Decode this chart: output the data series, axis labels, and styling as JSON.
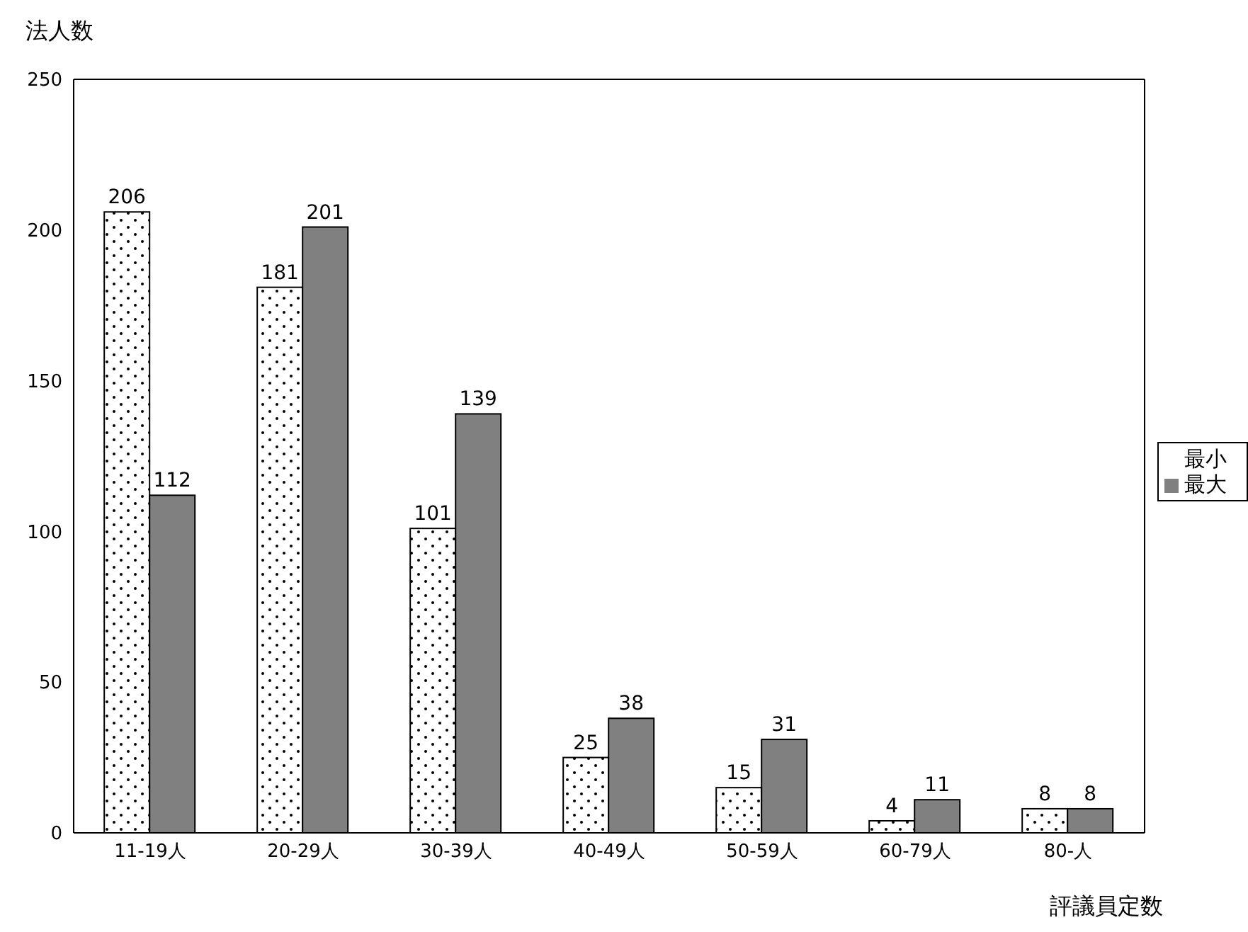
{
  "chart_data": {
    "type": "bar",
    "ylabel": "法人数",
    "xlabel": "評議員定数",
    "categories": [
      "11-19人",
      "20-29人",
      "30-39人",
      "40-49人",
      "50-59人",
      "60-79人",
      "80-人"
    ],
    "series": [
      {
        "name": "最小",
        "color": "#ffffff",
        "values": [
          206,
          181,
          101,
          25,
          15,
          4,
          8
        ]
      },
      {
        "name": "最大",
        "color": "#808080",
        "values": [
          112,
          201,
          139,
          38,
          31,
          11,
          8
        ]
      }
    ],
    "ylim": [
      0,
      250
    ],
    "yticks": [
      0,
      50,
      100,
      150,
      200,
      250
    ],
    "grid": false,
    "legend": "right",
    "data_labels": true
  }
}
